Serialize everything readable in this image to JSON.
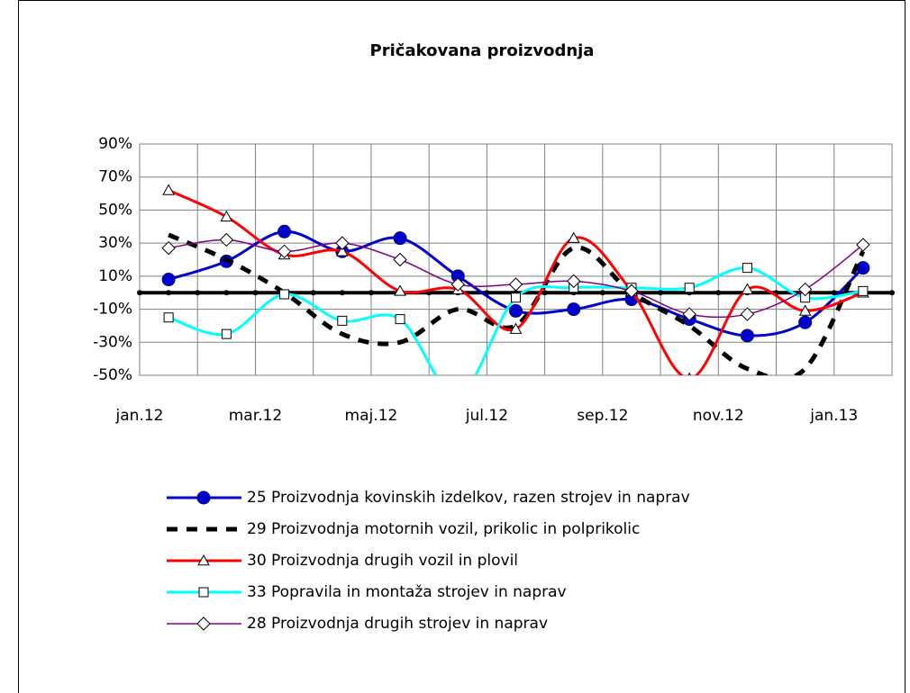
{
  "chart_data": {
    "type": "line",
    "title": "Pričakovana proizvodnja",
    "categories": [
      "jan.12",
      null,
      "mar.12",
      null,
      "maj.12",
      null,
      "jul.12",
      null,
      "sep.12",
      null,
      "nov.12",
      null,
      "jan.13"
    ],
    "ylim": [
      -50,
      90
    ],
    "yticks": [
      {
        "value": 90,
        "label": "90%"
      },
      {
        "value": 70,
        "label": "70%"
      },
      {
        "value": 50,
        "label": "50%"
      },
      {
        "value": 30,
        "label": "30%"
      },
      {
        "value": 10,
        "label": "10%"
      },
      {
        "value": -10,
        "label": "-10%"
      },
      {
        "value": -30,
        "label": "-30%"
      },
      {
        "value": -50,
        "label": "-50%"
      }
    ],
    "grid": true,
    "series": [
      {
        "name": "25 Proizvodnja kovinskih izdelkov, razen strojev in naprav",
        "color": "#0000cc",
        "marker": "circle",
        "values": [
          8,
          19,
          37,
          25,
          33,
          10,
          -11,
          -10,
          -4,
          -16,
          -26,
          -18,
          15
        ]
      },
      {
        "name": "29 Proizvodnja motornih vozil, prikolic in polprikolic",
        "color": "#000000",
        "dashed": true,
        "values": [
          35,
          20,
          0,
          -25,
          -30,
          -10,
          -20,
          27,
          0,
          -20,
          -46,
          -46,
          25
        ]
      },
      {
        "name": "30 Proizvodnja drugih vozil in plovil",
        "color": "#ff0000",
        "marker": "triangle",
        "values": [
          62,
          46,
          23,
          25,
          1,
          2,
          -22,
          33,
          1,
          -52,
          2,
          -11,
          0
        ]
      },
      {
        "name": "33 Popravila in montaža strojev in naprav",
        "color": "#00ffff",
        "marker": "square",
        "values": [
          -15,
          -25,
          -1,
          -17,
          -16,
          -62,
          -3,
          3,
          3,
          3,
          15,
          -3,
          1
        ]
      },
      {
        "name": "28 Proizvodnja drugih strojev in naprav",
        "color": "#800080",
        "marker": "diamond",
        "thin": true,
        "values": [
          27,
          32,
          25,
          30,
          20,
          5,
          5,
          7,
          1,
          -13,
          -13,
          2,
          29
        ]
      }
    ]
  }
}
